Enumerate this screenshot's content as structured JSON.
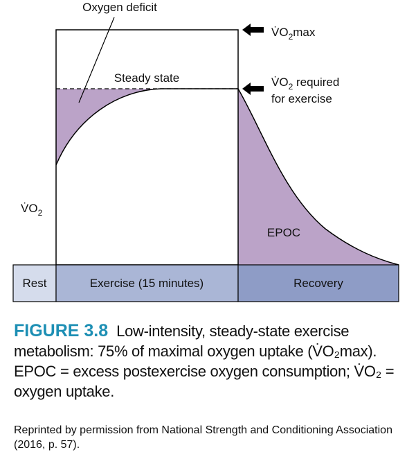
{
  "labels": {
    "oxygen_deficit": "Oxygen deficit",
    "steady_state": "Steady state",
    "vo2max": {
      "sym": "V̇O",
      "sub": "2",
      "rest": "max"
    },
    "vo2_required": {
      "sym": "V̇O",
      "sub": "2",
      "rest": " required",
      "line2": "for exercise"
    },
    "vo2_axis": {
      "sym": "V̇O",
      "sub": "2"
    },
    "epoc": "EPOC"
  },
  "phases": [
    {
      "label": "Rest"
    },
    {
      "label": "Exercise (15 minutes)"
    },
    {
      "label": "Recovery"
    }
  ],
  "caption": {
    "figure_number": "FIGURE 3.8",
    "text": "Low-intensity, steady-state exercise metabolism: 75% of maximal oxygen uptake (V̇O₂max). EPOC = excess postexercise oxygen consumption; V̇O₂ = oxygen uptake."
  },
  "credit": "Reprinted by permission from National Strength and Conditioning Association (2016, p. 57).",
  "colors": {
    "area_fill": "#bba3c8",
    "rest_bar": "#d5dcec",
    "exercise_bar": "#aab6d6",
    "recovery_bar": "#8e9cc6",
    "caption_accent": "#1d8fb4"
  }
}
